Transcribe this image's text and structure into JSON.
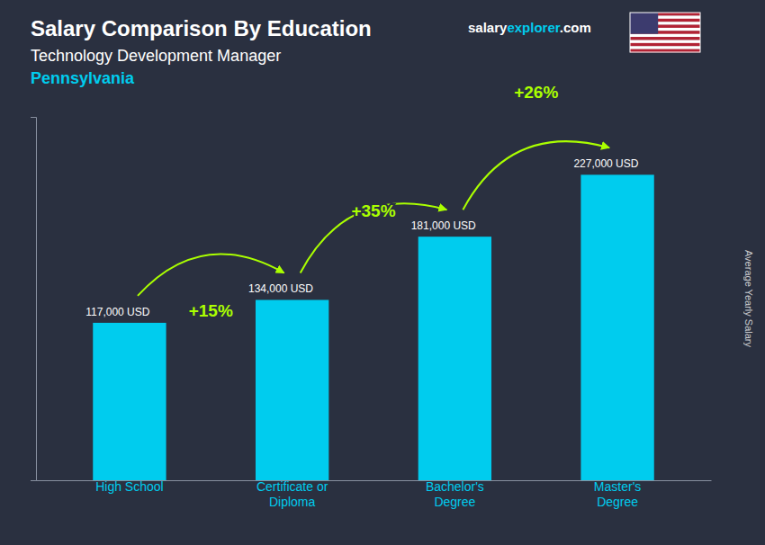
{
  "chart_data": {
    "type": "bar",
    "title": "Salary Comparison By Education",
    "subtitle": [
      "Technology Development Manager",
      "Pennsylvania"
    ],
    "ylabel": "Average Yearly Salary",
    "categories": [
      "High School",
      "Certificate or\nDiploma",
      "Bachelor's\nDegree",
      "Master's\nDegree"
    ],
    "values": [
      117000,
      134000,
      181000,
      227000
    ],
    "value_labels": [
      "117,000 USD",
      "134,000 USD",
      "181,000 USD",
      "227,000 USD"
    ],
    "data_labels": true,
    "color": "#00ccee",
    "ylim": [
      0,
      270000
    ],
    "tick_labels": "x",
    "grid": false,
    "annotations": [
      {
        "text": "+15%",
        "color": "#aaff00"
      },
      {
        "text": "+35%",
        "color": "#aaff00"
      },
      {
        "text": "+26%",
        "color": "#aaff00"
      }
    ],
    "watermark": [
      "salary",
      "explorer",
      ".com"
    ]
  }
}
